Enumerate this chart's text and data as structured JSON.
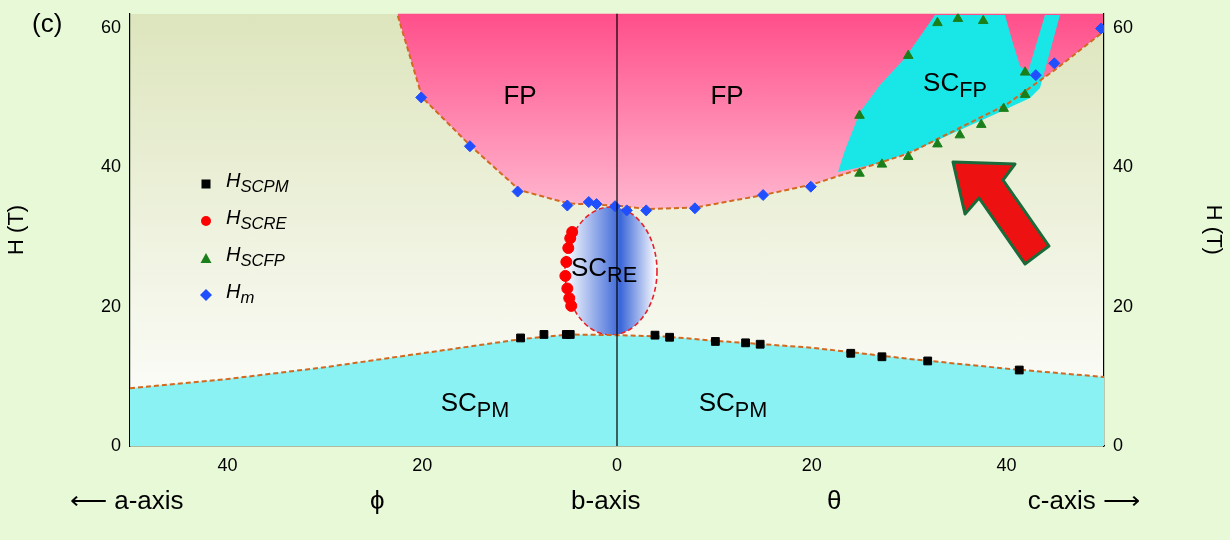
{
  "chart_data": {
    "type": "scatter",
    "ylabel": "H (T)",
    "y2label": "H (T)",
    "xlim": [
      -50,
      50
    ],
    "xticks": [
      {
        "value": -40,
        "label": "40"
      },
      {
        "value": -20,
        "label": "20"
      },
      0,
      20,
      40
    ],
    "ylim": [
      0,
      62
    ],
    "yticks": [
      0,
      20,
      40,
      60
    ],
    "y2lim": [
      0,
      62
    ],
    "y2ticks": [
      0,
      20,
      40,
      60
    ],
    "legend": "left",
    "ref_lines": [
      {
        "axis": "x",
        "value": 0,
        "label": null,
        "color": "#000000"
      }
    ],
    "annotations": [
      "(c)",
      "⟵ a-axis",
      "ϕ",
      "b-axis",
      "θ",
      "c-axis ⟶",
      "FP",
      "FP",
      "SC$_{FP}$",
      "SC$_{RE}$",
      "SC$_{PM}$",
      "SC$_{PM}$"
    ],
    "series": [
      {
        "type": "area",
        "color": "#8af2f2",
        "x": [
          -50,
          -40,
          -30,
          -20,
          -10,
          -5,
          0,
          5,
          10,
          15,
          20,
          25,
          30,
          40,
          50
        ],
        "values": [
          8.3,
          9.6,
          11.3,
          13.3,
          15.3,
          16,
          15.9,
          15.7,
          15.1,
          14.6,
          14.1,
          13.3,
          12.5,
          11.1,
          9.9
        ]
      },
      {
        "type": "line",
        "color": "#d2691e",
        "line_style": "dashed",
        "x": [
          -50,
          -40,
          -30,
          -20,
          -10,
          -5,
          0,
          5,
          10,
          15,
          20,
          25,
          30,
          40,
          50
        ],
        "values": [
          8.3,
          9.6,
          11.3,
          13.3,
          15.3,
          16,
          15.9,
          15.7,
          15.1,
          14.6,
          14.1,
          13.3,
          12.5,
          11.1,
          9.9
        ]
      },
      {
        "type": "line",
        "color": "#d2691e",
        "line_style": "dashed",
        "x": [
          -22.5,
          -20,
          -15,
          -10,
          -5,
          -2,
          0,
          3,
          8,
          15,
          20,
          30,
          40,
          45,
          50
        ],
        "values": [
          61.7,
          50,
          43,
          36.7,
          34.8,
          34.6,
          34.5,
          34,
          34.2,
          36,
          37.5,
          42,
          49,
          54,
          59.5
        ]
      },
      {
        "name": "H$_{SCPM}$",
        "color": "#000000",
        "marker": "square",
        "x": [
          -9.9,
          -7.5,
          -5.2,
          -4.8,
          3.9,
          5.4,
          10.1,
          13.2,
          14.7,
          24,
          27.2,
          31.9,
          41.3
        ],
        "values": [
          15.5,
          16,
          16,
          16,
          15.9,
          15.6,
          15,
          14.8,
          14.6,
          13.3,
          12.8,
          12.2,
          10.9
        ]
      },
      {
        "name": "H$_{SCRE}$",
        "color": "#ff0000",
        "marker": "circle",
        "x": [
          -4.6,
          -4.8,
          -5,
          -5.2,
          -5.3,
          -5.1,
          -4.9,
          -4.7
        ],
        "values": [
          30.7,
          29.8,
          28.4,
          26.4,
          24.4,
          22.6,
          21.2,
          20.1
        ]
      },
      {
        "name": "H$_{SCFP}$",
        "color": "#1a7f1a",
        "marker": "triangle",
        "x": [
          32.9,
          35,
          37.6,
          29.9,
          41.9,
          41.9,
          24.9,
          39.7,
          37.4,
          35.2,
          32.9,
          29.9,
          27.2,
          24.9
        ],
        "values": [
          60.7,
          61.3,
          61,
          56,
          53.6,
          50.4,
          47.4,
          48.4,
          46.1,
          44.6,
          43.3,
          41.5,
          40.4,
          39.1
        ]
      },
      {
        "name": "H$_{m}$",
        "color": "#1f4fff",
        "marker": "diamond",
        "x": [
          -20.1,
          -15.1,
          -10.2,
          -5.1,
          -2.9,
          -2.1,
          -0.2,
          1,
          3,
          8,
          15,
          19.9,
          43,
          44.9,
          49.7
        ],
        "values": [
          50,
          43,
          36.5,
          34.5,
          35,
          34.7,
          34.4,
          33.8,
          33.8,
          34.1,
          36,
          37.2,
          53.2,
          54.9,
          59.9
        ]
      }
    ]
  }
}
